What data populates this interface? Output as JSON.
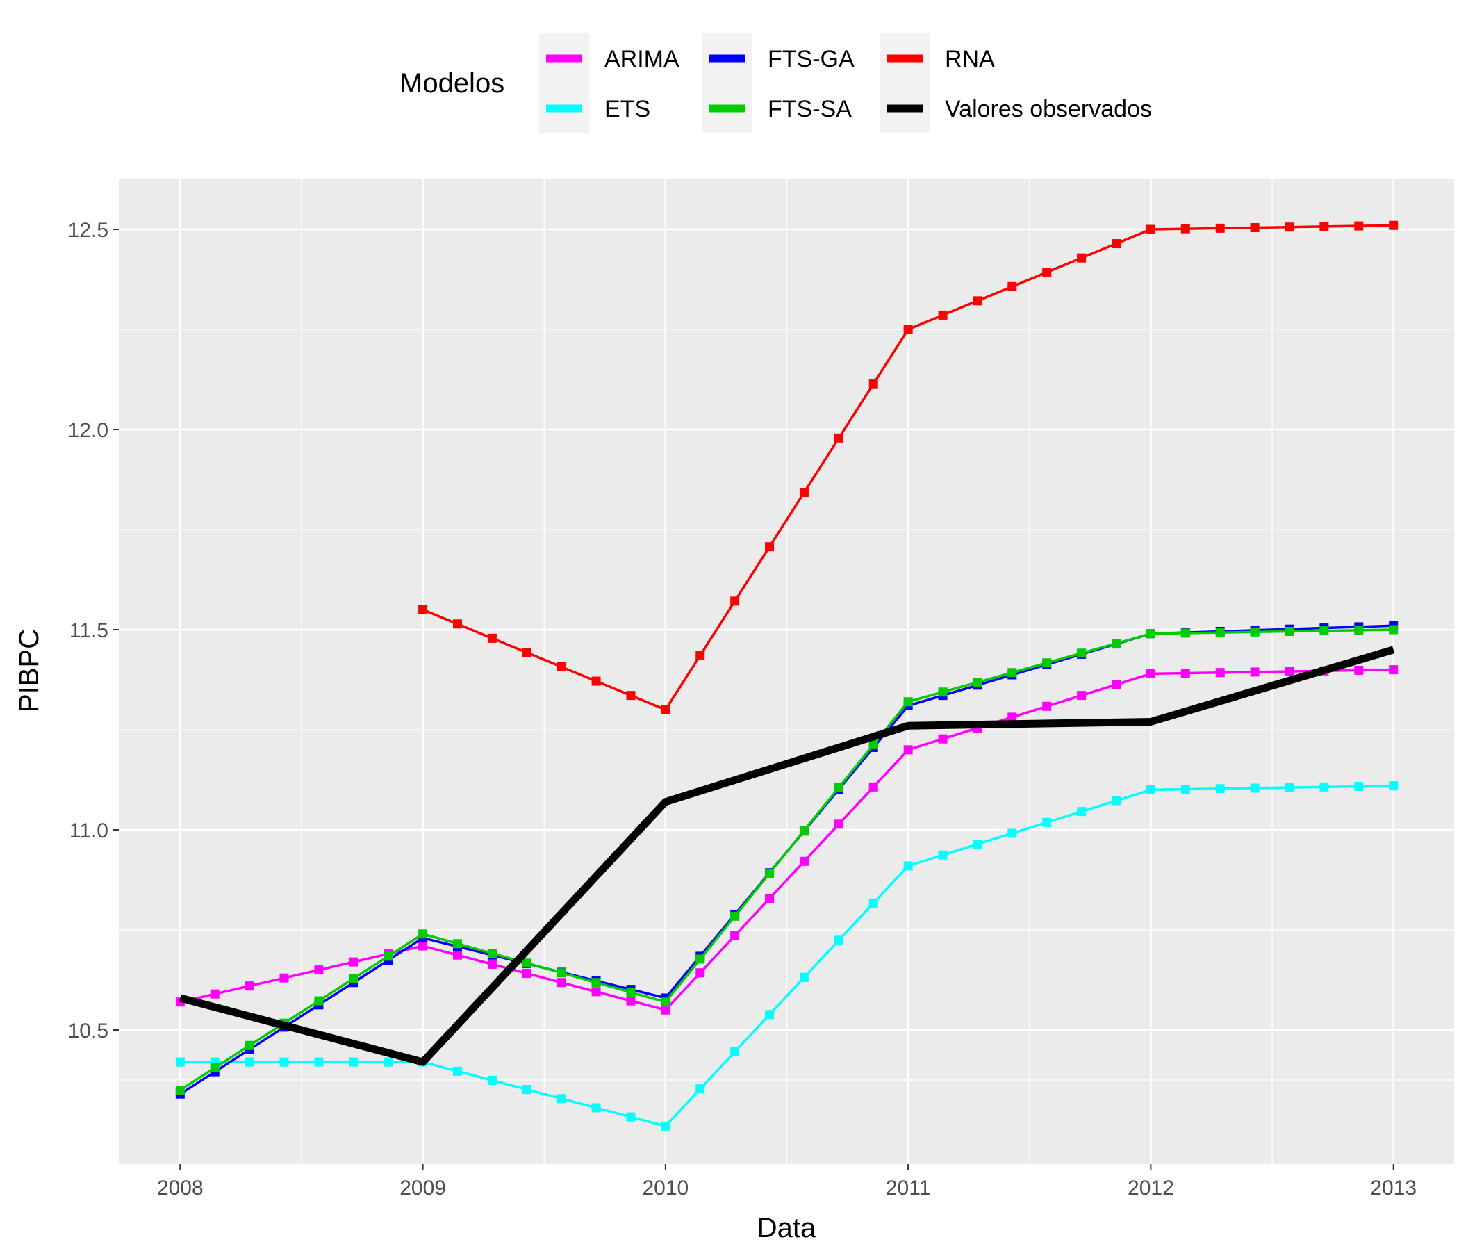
{
  "chart_data": {
    "type": "line",
    "xlabel": "Data",
    "ylabel": "PIBPC",
    "xlim": [
      2007.75,
      2013.25
    ],
    "ylim": [
      10.165,
      12.625
    ],
    "x_ticks": [
      2008,
      2009,
      2010,
      2011,
      2012,
      2013
    ],
    "x_tick_labels": [
      "2008",
      "2009",
      "2010",
      "2011",
      "2012",
      "2013"
    ],
    "y_ticks": [
      10.5,
      11.0,
      11.5,
      12.0,
      12.5
    ],
    "y_tick_labels": [
      "10.5",
      "11.0",
      "11.5",
      "12.0",
      "12.5"
    ],
    "grid": true,
    "legend": {
      "title": "Modelos",
      "position": "top",
      "columns": [
        [
          "ARIMA",
          "ETS"
        ],
        [
          "FTS-GA",
          "FTS-SA"
        ],
        [
          "RNA",
          "Valores observados"
        ]
      ]
    },
    "series": [
      {
        "name": "ARIMA",
        "color": "#FF00FF",
        "x": [
          2008,
          2009,
          2010,
          2011,
          2012,
          2013
        ],
        "values": [
          10.57,
          10.71,
          10.55,
          11.2,
          11.39,
          11.4
        ]
      },
      {
        "name": "ETS",
        "color": "#00FFFF",
        "x": [
          2008,
          2009,
          2010,
          2011,
          2012,
          2013
        ],
        "values": [
          10.42,
          10.42,
          10.26,
          10.91,
          11.1,
          11.11
        ]
      },
      {
        "name": "FTS-GA",
        "color": "#0000FF",
        "x": [
          2008,
          2009,
          2010,
          2011,
          2012,
          2013
        ],
        "values": [
          10.34,
          10.73,
          10.58,
          11.31,
          11.49,
          11.51
        ]
      },
      {
        "name": "FTS-SA",
        "color": "#00CC00",
        "x": [
          2008,
          2009,
          2010,
          2011,
          2012,
          2013
        ],
        "values": [
          10.35,
          10.74,
          10.57,
          11.32,
          11.49,
          11.5
        ]
      },
      {
        "name": "RNA",
        "color": "#FF0000",
        "x": [
          2009,
          2010,
          2011,
          2012,
          2013
        ],
        "values": [
          11.55,
          11.3,
          12.25,
          12.5,
          12.51
        ]
      },
      {
        "name": "Valores observados",
        "color": "#000000",
        "x": [
          2008,
          2009,
          2010,
          2011,
          2012,
          2013
        ],
        "values": [
          10.58,
          10.42,
          11.07,
          11.26,
          11.27,
          11.45
        ]
      }
    ]
  }
}
